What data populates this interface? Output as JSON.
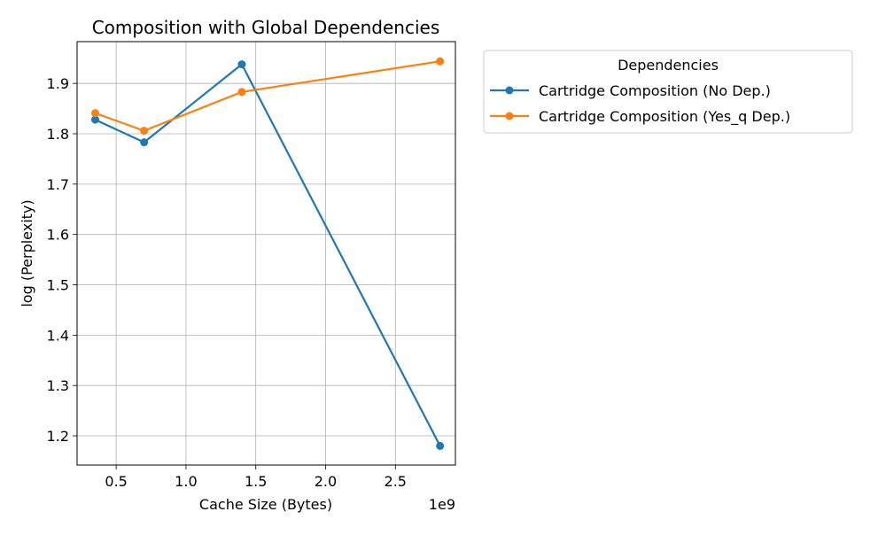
{
  "chart_data": {
    "type": "line",
    "title": "Composition with Global Dependencies",
    "xlabel": "Cache Size (Bytes)",
    "ylabel": "log (Perplexity)",
    "x_offset_label": "1e9",
    "xlim": [
      0.22,
      2.93
    ],
    "ylim": [
      1.142,
      1.983
    ],
    "x_ticks": [
      0.5,
      1.0,
      1.5,
      2.0,
      2.5
    ],
    "x_tick_labels": [
      "0.5",
      "1.0",
      "1.5",
      "2.0",
      "2.5"
    ],
    "y_ticks": [
      1.2,
      1.3,
      1.4,
      1.5,
      1.6,
      1.7,
      1.8,
      1.9
    ],
    "y_tick_labels": [
      "1.2",
      "1.3",
      "1.4",
      "1.5",
      "1.6",
      "1.7",
      "1.8",
      "1.9"
    ],
    "grid": true,
    "legend_title": "Dependencies",
    "legend_position": "outside-right",
    "series": [
      {
        "name": "Cartridge Composition (No Dep.)",
        "color": "#1f77b4",
        "x": [
          0.35,
          0.7,
          1.4,
          2.82
        ],
        "y": [
          1.828,
          1.783,
          1.938,
          1.18
        ]
      },
      {
        "name": "Cartridge Composition (Yes_q Dep.)",
        "color": "#ff7f0e",
        "x": [
          0.35,
          0.7,
          1.4,
          2.82
        ],
        "y": [
          1.841,
          1.806,
          1.883,
          1.944
        ]
      }
    ]
  }
}
